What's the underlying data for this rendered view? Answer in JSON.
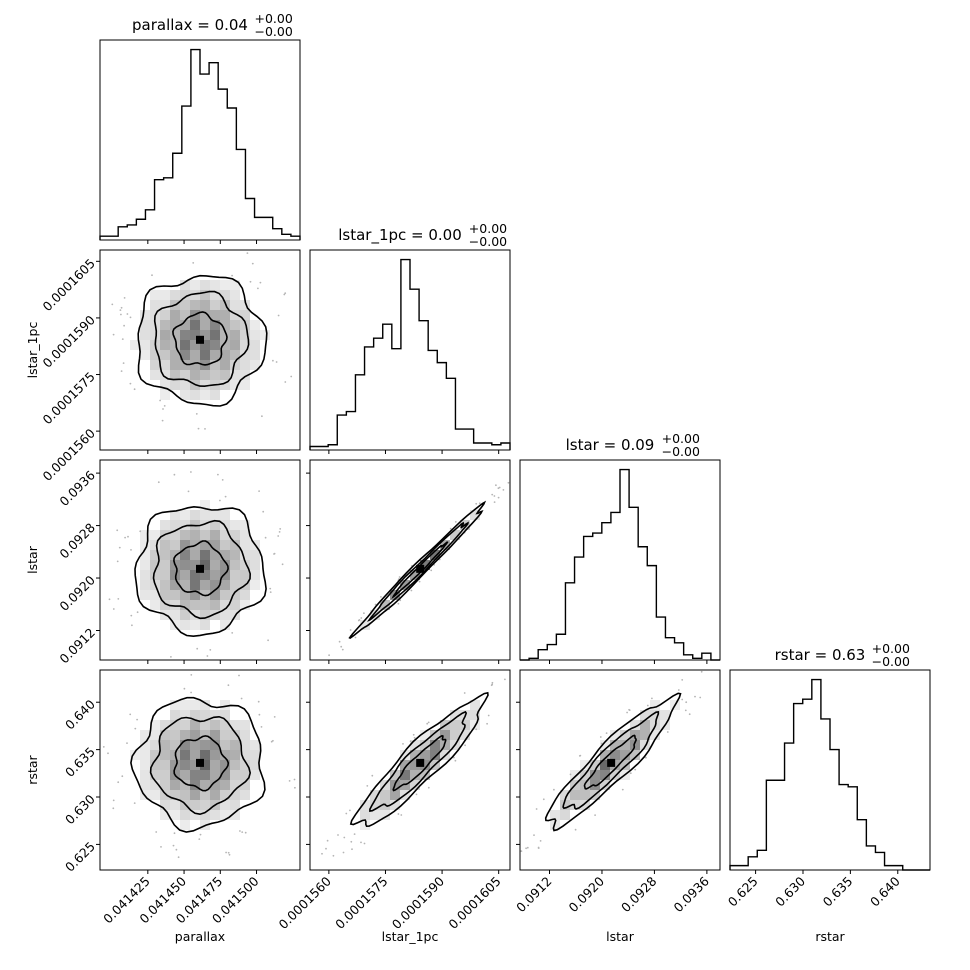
{
  "chart_data": {
    "type": "corner",
    "parameters": [
      "parallax",
      "lstar_1pc",
      "lstar",
      "rstar"
    ],
    "titles": [
      {
        "param": "parallax",
        "main": "parallax = 0.04",
        "sup": "+0.00",
        "sub": "−0.00"
      },
      {
        "param": "lstar_1pc",
        "main": "lstar_1pc = 0.00",
        "sup": "+0.00",
        "sub": "−0.00"
      },
      {
        "param": "lstar",
        "main": "lstar = 0.09",
        "sup": "+0.00",
        "sub": "−0.00"
      },
      {
        "param": "rstar",
        "main": "rstar = 0.63",
        "sup": "+0.00",
        "sub": "−0.00"
      }
    ],
    "axis_ranges": {
      "parallax": [
        0.041392,
        0.04153
      ],
      "lstar_1pc": [
        0.0001555,
        0.0001608
      ],
      "lstar": [
        0.09075,
        0.0938
      ],
      "rstar": [
        0.6223,
        0.6434
      ]
    },
    "ticks": {
      "parallax": [
        "0.041425",
        "0.041450",
        "0.041475",
        "0.041500"
      ],
      "lstar_1pc": [
        "0.0001560",
        "0.0001575",
        "0.0001590",
        "0.0001605"
      ],
      "lstar": [
        "0.0912",
        "0.0920",
        "0.0928",
        "0.0936"
      ],
      "rstar": [
        "0.625",
        "0.630",
        "0.635",
        "0.640"
      ]
    },
    "tick_values": {
      "parallax": [
        0.041425,
        0.04145,
        0.041475,
        0.0415
      ],
      "lstar_1pc": [
        0.000156,
        0.0001575,
        0.000159,
        0.0001605
      ],
      "lstar": [
        0.0912,
        0.092,
        0.0928,
        0.0936
      ],
      "rstar": [
        0.625,
        0.63,
        0.635,
        0.64
      ]
    },
    "xlabels": [
      "parallax",
      "lstar_1pc",
      "lstar",
      "rstar"
    ],
    "ylabels": [
      "lstar_1pc",
      "lstar",
      "rstar"
    ],
    "histograms": [
      {
        "param": "parallax",
        "counts": [
          2,
          2,
          7,
          8,
          11,
          16,
          32,
          33,
          46,
          71,
          101,
          88,
          94,
          80,
          70,
          48,
          22,
          12,
          12,
          6,
          3,
          2
        ]
      },
      {
        "param": "lstar_1pc",
        "counts": [
          2,
          2,
          3,
          20,
          22,
          43,
          59,
          64,
          72,
          58,
          109,
          92,
          74,
          57,
          50,
          41,
          12,
          12,
          4,
          4,
          3,
          4
        ]
      },
      {
        "param": "lstar",
        "counts": [
          0,
          1,
          6,
          9,
          15,
          45,
          60,
          72,
          74,
          80,
          86,
          111,
          89,
          66,
          55,
          25,
          13,
          10,
          3,
          1,
          4,
          0
        ]
      },
      {
        "param": "rstar",
        "counts": [
          2,
          2,
          6,
          9,
          41,
          41,
          58,
          76,
          78,
          87,
          69,
          55,
          39,
          38,
          23,
          11,
          8,
          2,
          2,
          0,
          0,
          0
        ]
      }
    ],
    "pairs": [
      {
        "x": "parallax",
        "y": "lstar_1pc",
        "mean": [
          0.041461,
          0.00015842
        ],
        "corr": 0.0
      },
      {
        "x": "parallax",
        "y": "lstar",
        "mean": [
          0.041461,
          0.09214
        ],
        "corr": 0.0
      },
      {
        "x": "parallax",
        "y": "rstar",
        "mean": [
          0.041461,
          0.6336
        ],
        "corr": 0.0
      },
      {
        "x": "lstar_1pc",
        "y": "lstar",
        "mean": [
          0.00015842,
          0.09214
        ],
        "corr": 0.99
      },
      {
        "x": "lstar_1pc",
        "y": "rstar",
        "mean": [
          0.00015842,
          0.6336
        ],
        "corr": 0.92
      },
      {
        "x": "lstar",
        "y": "rstar",
        "mean": [
          0.09214,
          0.6336
        ],
        "corr": 0.92
      }
    ],
    "style": {
      "line_color": "#000000",
      "density_color": "#000000",
      "grid": false
    }
  }
}
